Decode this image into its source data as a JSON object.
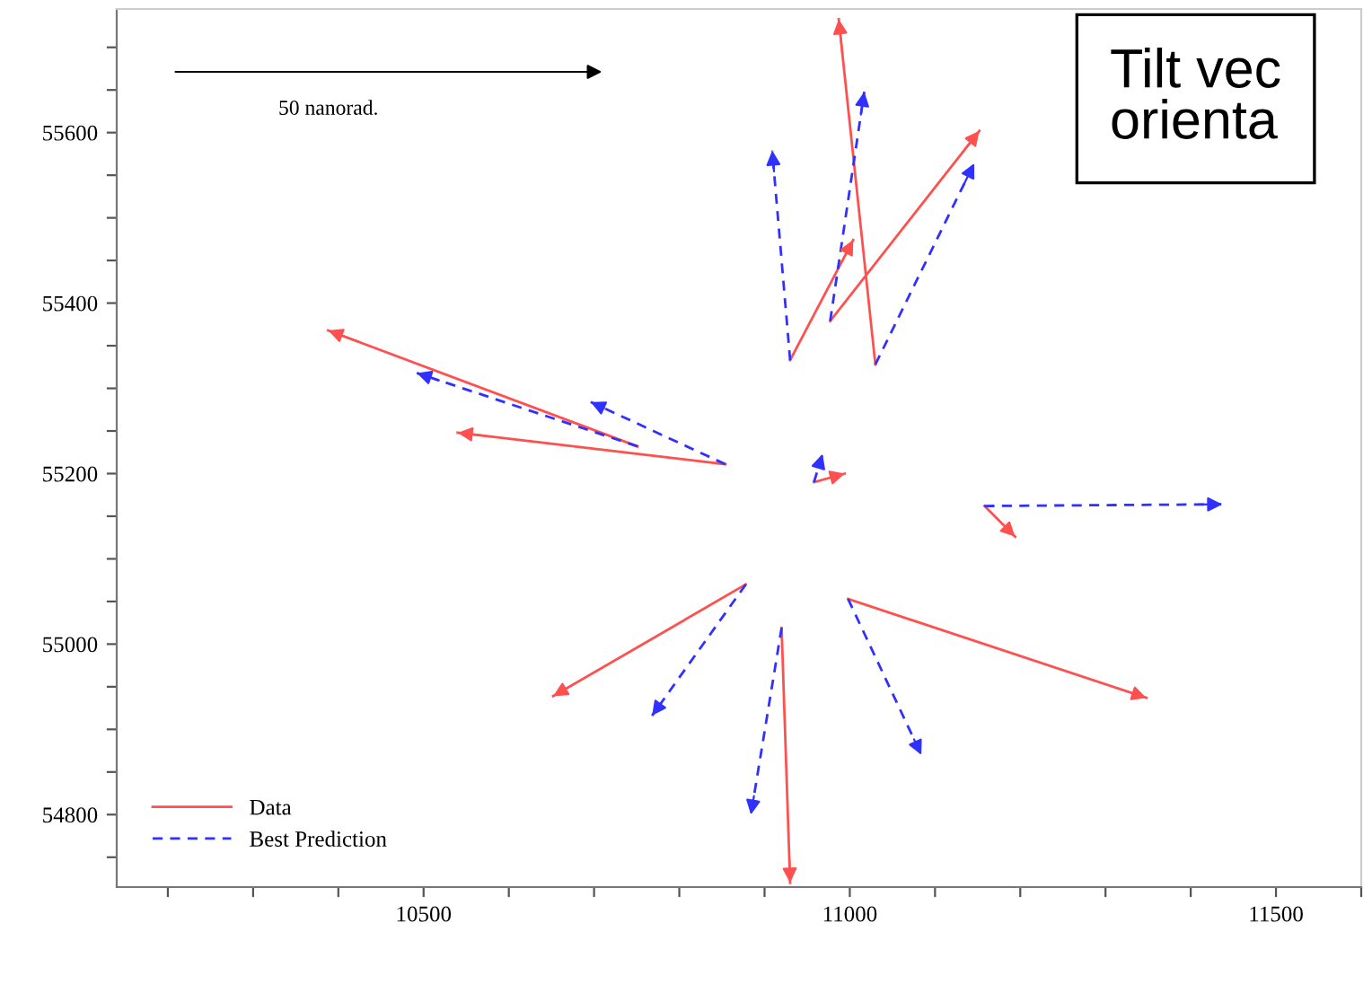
{
  "chart_data": {
    "type": "line",
    "xlim": [
      10140,
      11600
    ],
    "ylim": [
      54715,
      55745
    ],
    "xticks": [
      {
        "value": 10200,
        "label": null
      },
      {
        "value": 10300,
        "label": null
      },
      {
        "value": 10400,
        "label": null
      },
      10500,
      {
        "value": 10600,
        "label": null
      },
      {
        "value": 10700,
        "label": null
      },
      {
        "value": 10800,
        "label": null
      },
      {
        "value": 10900,
        "label": null
      },
      11000,
      {
        "value": 11100,
        "label": null
      },
      {
        "value": 11200,
        "label": null
      },
      {
        "value": 11300,
        "label": null
      },
      {
        "value": 11400,
        "label": null
      },
      11500,
      {
        "value": 11600,
        "label": null
      }
    ],
    "yticks": [
      {
        "value": 54750,
        "label": null
      },
      54800,
      {
        "value": 54850,
        "label": null
      },
      {
        "value": 54900,
        "label": null
      },
      {
        "value": 54950,
        "label": null
      },
      55000,
      {
        "value": 55050,
        "label": null
      },
      {
        "value": 55100,
        "label": null
      },
      {
        "value": 55150,
        "label": null
      },
      55200,
      {
        "value": 55250,
        "label": null
      },
      {
        "value": 55300,
        "label": null
      },
      {
        "value": 55350,
        "label": null
      },
      55400,
      {
        "value": 55450,
        "label": null
      },
      {
        "value": 55500,
        "label": null
      },
      {
        "value": 55550,
        "label": null
      },
      55600,
      {
        "value": 55650,
        "label": null
      },
      {
        "value": 55700,
        "label": null
      }
    ],
    "grid": false,
    "legend": "bottom left",
    "series": [
      {
        "name": "Data",
        "color": "#ff5050",
        "line_style": "solid",
        "x": [
          10751,
          10388,
          null,
          10854,
          10540,
          null,
          10930,
          11004,
          null,
          11030,
          10987,
          null,
          10977,
          11152,
          null,
          10958,
          10994,
          null,
          11158,
          11194,
          null,
          10878,
          10652,
          null,
          10920,
          10930,
          null,
          10998,
          11348
        ],
        "values": [
          55232,
          55368,
          null,
          55211,
          55248,
          null,
          55333,
          55474,
          null,
          55328,
          55733,
          null,
          55379,
          55602,
          null,
          55190,
          55200,
          null,
          55162,
          55126,
          null,
          55070,
          54939,
          null,
          55019,
          54720,
          null,
          55053,
          54937
        ]
      },
      {
        "name": "Best Prediction",
        "color": "#3030ff",
        "line_style": "dashed",
        "x": [
          10751,
          10492,
          null,
          10854,
          10696,
          null,
          10930,
          10909,
          null,
          11030,
          11146,
          null,
          10977,
          11017,
          null,
          10958,
          10968,
          null,
          11158,
          11437,
          null,
          10878,
          10768,
          null,
          10920,
          10884,
          null,
          10998,
          11084
        ],
        "values": [
          55232,
          55318,
          null,
          55211,
          55284,
          null,
          55333,
          55579,
          null,
          55328,
          55564,
          null,
          55379,
          55648,
          null,
          55190,
          55223,
          null,
          55162,
          55164,
          null,
          55070,
          54916,
          null,
          55019,
          54800,
          null,
          55053,
          54870
        ]
      }
    ],
    "annotations": [
      "50 nanorad.",
      "Tilt vec\norienta"
    ]
  }
}
